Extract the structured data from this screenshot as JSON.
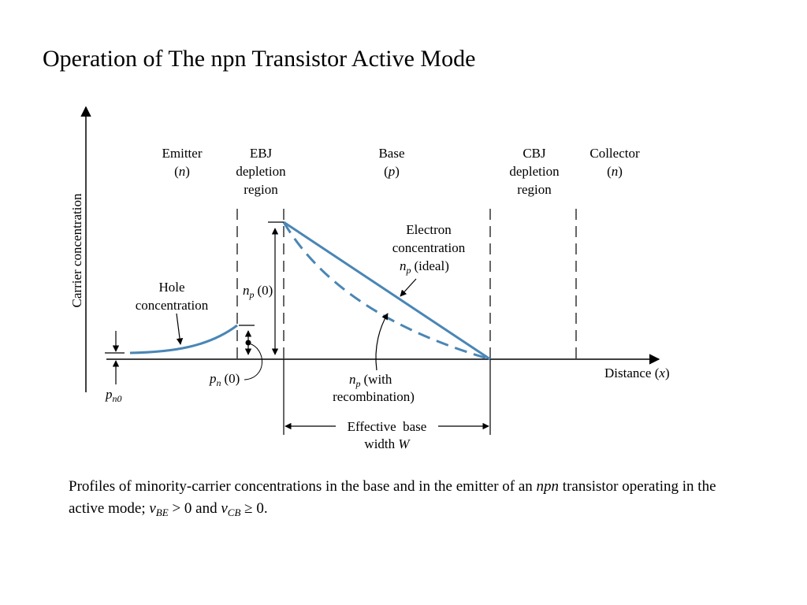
{
  "title": "Operation of The npn Transistor Active Mode",
  "regions": {
    "emitter": {
      "name": "Emitter",
      "type": "n"
    },
    "ebj": {
      "line1": "EBJ",
      "line2": "depletion",
      "line3": "region"
    },
    "base": {
      "name": "Base",
      "type": "p"
    },
    "cbj": {
      "line1": "CBJ",
      "line2": "depletion",
      "line3": "region"
    },
    "collector": {
      "name": "Collector",
      "type": "n"
    }
  },
  "axes": {
    "y_label": "Carrier concentration",
    "x_label": "Distance",
    "x_var": "x"
  },
  "labels": {
    "hole_line1": "Hole",
    "hole_line2": "concentration",
    "electron_line1": "Electron",
    "electron_line2": "concentration",
    "np_ideal_sym": "n",
    "np_ideal_sub": "p",
    "np_ideal_text": "(ideal)",
    "np0_sym": "n",
    "np0_sub": "p",
    "np0_text": "(0)",
    "pn0_sym": "p",
    "pn0_sub": "n",
    "pn0_text": "(0)",
    "pno_sym": "p",
    "pno_sub": "n0",
    "nrec_sym": "n",
    "nrec_sub": "p",
    "nrec_text1": "(with",
    "nrec_text2": "recombination)",
    "width_line1": "Effective  base",
    "width_line2": "width",
    "width_var": "W"
  },
  "caption": {
    "part1": "Profiles of minority-carrier concentrations in the base and in the emitter of an ",
    "npn": "npn",
    "part2": " transistor operating in the active mode; ",
    "vbe_sym": "v",
    "vbe_sub": "BE",
    "vbe_rel": " > 0 and ",
    "vcb_sym": "v",
    "vcb_sub": "CB",
    "vcb_rel": " ≥ 0."
  },
  "colors": {
    "curve": "#4a86b5",
    "axis": "#000000"
  }
}
